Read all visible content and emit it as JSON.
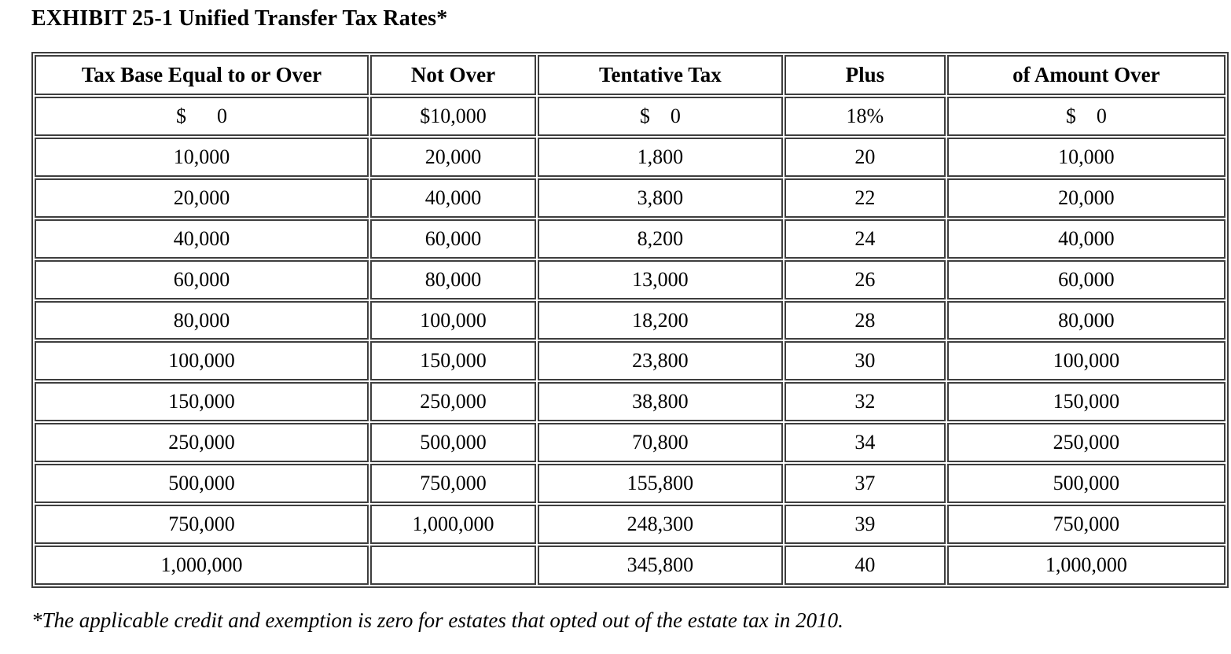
{
  "title": "EXHIBIT 25-1 Unified Transfer Tax Rates*",
  "footnote": "*The applicable credit and exemption is zero for estates that opted out of the estate tax in 2010.",
  "colors": {
    "border": "#3e3e3e",
    "text": "#000000",
    "background": "#ffffff"
  },
  "table": {
    "headers": [
      "Tax Base Equal to or Over",
      "Not Over",
      "Tentative Tax",
      "Plus",
      "of Amount Over"
    ],
    "rows": [
      [
        "$      0",
        "$10,000",
        "$    0",
        "18%",
        "$    0"
      ],
      [
        "10,000",
        "20,000",
        "1,800",
        "20",
        "10,000"
      ],
      [
        "20,000",
        "40,000",
        "3,800",
        "22",
        "20,000"
      ],
      [
        "40,000",
        "60,000",
        "8,200",
        "24",
        "40,000"
      ],
      [
        "60,000",
        "80,000",
        "13,000",
        "26",
        "60,000"
      ],
      [
        "80,000",
        "100,000",
        "18,200",
        "28",
        "80,000"
      ],
      [
        "100,000",
        "150,000",
        "23,800",
        "30",
        "100,000"
      ],
      [
        "150,000",
        "250,000",
        "38,800",
        "32",
        "150,000"
      ],
      [
        "250,000",
        "500,000",
        "70,800",
        "34",
        "250,000"
      ],
      [
        "500,000",
        "750,000",
        "155,800",
        "37",
        "500,000"
      ],
      [
        "750,000",
        "1,000,000",
        "248,300",
        "39",
        "750,000"
      ],
      [
        "1,000,000",
        "",
        "345,800",
        "40",
        "1,000,000"
      ]
    ]
  }
}
